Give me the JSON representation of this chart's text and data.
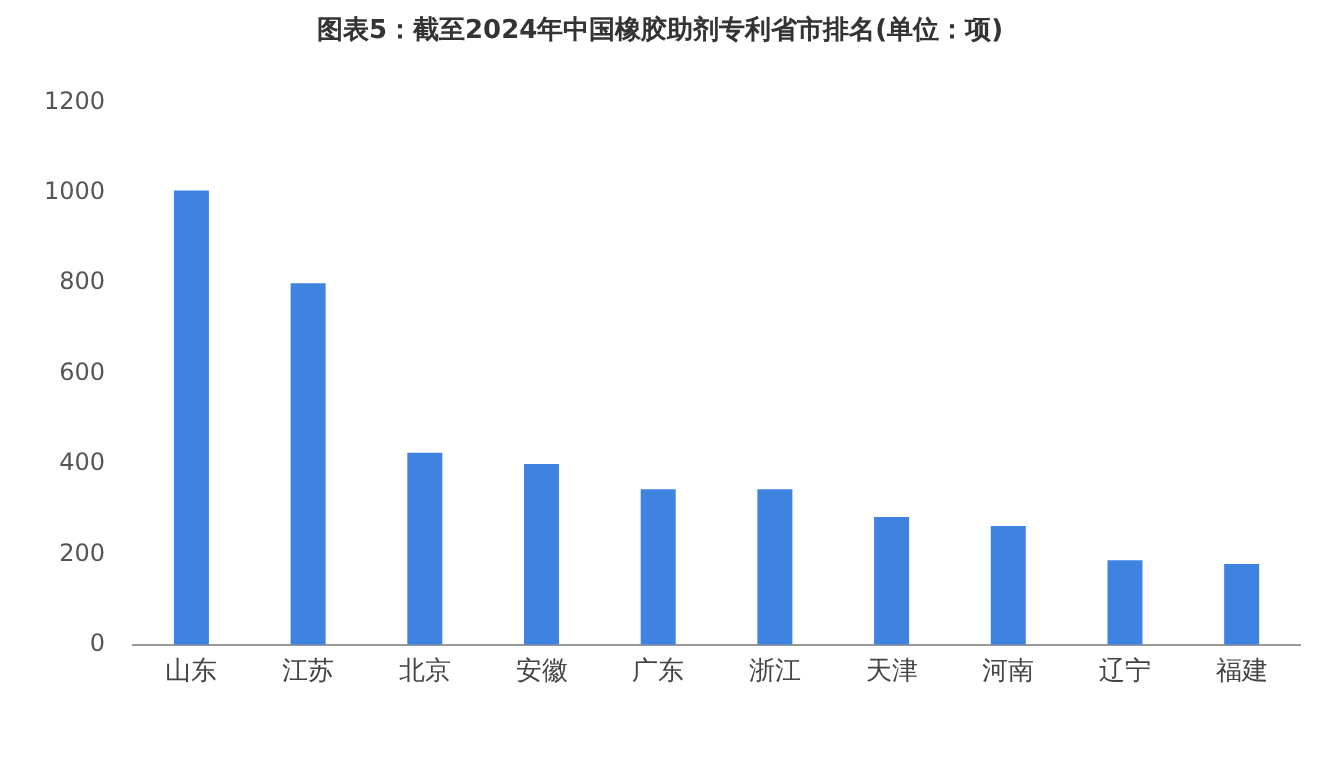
{
  "chart_data": {
    "type": "bar",
    "title": "图表5：截至2024年中国橡胶助剂专利省市排名(单位：项)",
    "categories": [
      "山东",
      "江苏",
      "北京",
      "安徽",
      "广东",
      "浙江",
      "天津",
      "河南",
      "辽宁",
      "福建"
    ],
    "values": [
      1005,
      800,
      425,
      400,
      344,
      344,
      283,
      263,
      187,
      179
    ],
    "color": "#3f83e0",
    "ylim": [
      0,
      1200
    ],
    "yticks": [
      0,
      200,
      400,
      600,
      800,
      1000,
      1200
    ],
    "grid": false,
    "legend": false
  }
}
